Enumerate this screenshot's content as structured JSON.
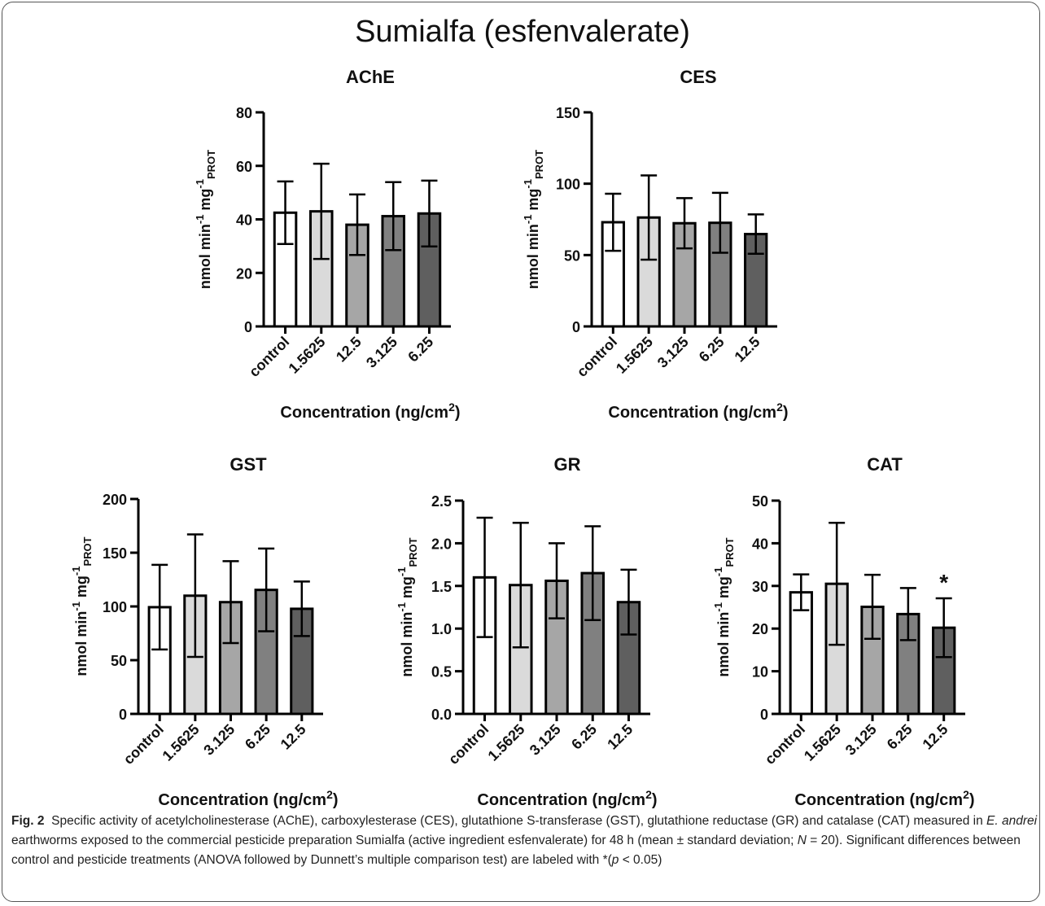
{
  "figure": {
    "title": "Sumialfa (esfenvalerate)"
  },
  "chart_data": [
    {
      "type": "bar",
      "title": "AChE",
      "ylabel": "nmol min-1 mg-1 PROT",
      "xlabel": "Concentration (ng/cm2)",
      "ylim": [
        0,
        80
      ],
      "yticks": [
        0,
        20,
        40,
        60,
        80
      ],
      "categories": [
        "control",
        "1.5625",
        "12.5",
        "3.125",
        "6.25"
      ],
      "values": [
        42.5,
        43,
        38,
        41.2,
        42.2
      ],
      "errors": [
        11.7,
        17.8,
        11.3,
        12.7,
        12.3
      ],
      "colors": [
        "#ffffff",
        "#dadada",
        "#a6a6a6",
        "#808080",
        "#5f5f5f"
      ],
      "significant": [
        false,
        false,
        false,
        false,
        false
      ]
    },
    {
      "type": "bar",
      "title": "CES",
      "ylabel": "nmol min-1 mg-1 PROT",
      "xlabel": "Concentration (ng/cm2)",
      "ylim": [
        0,
        150
      ],
      "yticks": [
        0,
        50,
        100,
        150
      ],
      "categories": [
        "control",
        "1.5625",
        "3.125",
        "6.25",
        "12.5"
      ],
      "values": [
        73,
        76.3,
        72.3,
        72.6,
        64.7
      ],
      "errors": [
        20,
        29.5,
        17.6,
        21,
        13.8
      ],
      "colors": [
        "#ffffff",
        "#dadada",
        "#a6a6a6",
        "#808080",
        "#5f5f5f"
      ],
      "significant": [
        false,
        false,
        false,
        false,
        false
      ]
    },
    {
      "type": "bar",
      "title": "GST",
      "ylabel": "nmol min-1 mg-1 PROT",
      "xlabel": "Concentration (ng/cm2)",
      "ylim": [
        0,
        200
      ],
      "yticks": [
        0,
        50,
        100,
        150,
        200
      ],
      "categories": [
        "control",
        "1.5625",
        "3.125",
        "6.25",
        "12.5"
      ],
      "values": [
        99.3,
        110,
        104,
        115.4,
        97.8
      ],
      "errors": [
        39.4,
        57,
        38.1,
        38.5,
        25.4
      ],
      "colors": [
        "#ffffff",
        "#dadada",
        "#a6a6a6",
        "#808080",
        "#5f5f5f"
      ],
      "significant": [
        false,
        false,
        false,
        false,
        false
      ]
    },
    {
      "type": "bar",
      "title": "GR",
      "ylabel": "nmol min-1 mg-1 PROT",
      "xlabel": "Concentration (ng/cm2)",
      "ylim": [
        0,
        2.5
      ],
      "yticks": [
        0,
        0.5,
        1.0,
        1.5,
        2.0,
        2.5
      ],
      "categories": [
        "control",
        "1.5625",
        "3.125",
        "6.25",
        "12.5"
      ],
      "values": [
        1.6,
        1.51,
        1.56,
        1.65,
        1.31
      ],
      "errors": [
        0.7,
        0.73,
        0.44,
        0.55,
        0.38
      ],
      "colors": [
        "#ffffff",
        "#dadada",
        "#a6a6a6",
        "#808080",
        "#5f5f5f"
      ],
      "significant": [
        false,
        false,
        false,
        false,
        false
      ]
    },
    {
      "type": "bar",
      "title": "CAT",
      "ylabel": "nmol min-1 mg-1 PROT",
      "xlabel": "Concentration (ng/cm2)",
      "ylim": [
        0,
        50
      ],
      "yticks": [
        0,
        10,
        20,
        30,
        40,
        50
      ],
      "categories": [
        "control",
        "1.5625",
        "3.125",
        "6.25",
        "12.5"
      ],
      "values": [
        28.5,
        30.5,
        25.1,
        23.4,
        20.2
      ],
      "errors": [
        4.2,
        14.3,
        7.5,
        6.1,
        6.9
      ],
      "colors": [
        "#ffffff",
        "#dadada",
        "#a6a6a6",
        "#808080",
        "#5f5f5f"
      ],
      "significant": [
        false,
        false,
        false,
        false,
        true
      ],
      "significance_marker": "*"
    }
  ],
  "caption": {
    "label": "Fig. 2",
    "text_1": "Specific activity of acetylcholinesterase (AChE), carboxylesterase (CES), glutathione S-transferase (GST), glutathione reductase (GR) and catalase (CAT) measured in ",
    "species": "E. andrei",
    "text_2": " earthworms exposed to the commercial pesticide preparation Sumialfa (active ingredient esfenvalerate) for 48 h (mean ± standard deviation; ",
    "n_symbol": "N",
    "text_3": " = 20). Significant differences between control and pesticide treatments (ANOVA followed by Dunnett’s multiple comparison test) are labeled with *(",
    "p_symbol": "p",
    "text_4": " < 0.05)"
  }
}
